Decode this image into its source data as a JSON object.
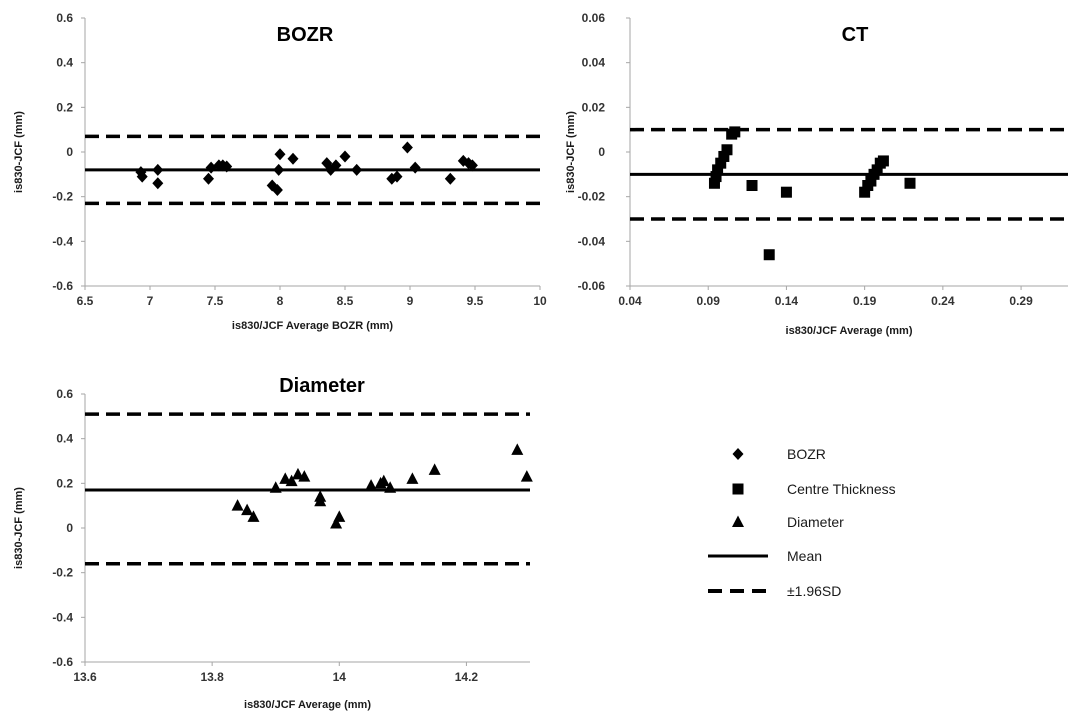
{
  "colors": {
    "marker": "#000000",
    "axis": "#a6a6a6",
    "text": "#333333"
  },
  "legend": {
    "items": [
      {
        "label": "BOZR",
        "marker": "diamond"
      },
      {
        "label": "Centre Thickness",
        "marker": "square"
      },
      {
        "label": "Diameter",
        "marker": "triangle"
      },
      {
        "label": "Mean",
        "marker": "solid-line"
      },
      {
        "label": "±1.96SD",
        "marker": "dashed-line"
      }
    ]
  },
  "chart_data": [
    {
      "type": "scatter",
      "title": "BOZR",
      "xlabel": "is830/JCF Average BOZR (mm)",
      "ylabel": "is830-JCF (mm)",
      "xlim": [
        6.5,
        10
      ],
      "ylim": [
        -0.6,
        0.6
      ],
      "xticks": [
        6.5,
        7,
        7.5,
        8,
        8.5,
        9,
        9.5,
        10
      ],
      "yticks": [
        -0.6,
        -0.4,
        -0.2,
        0,
        0.2,
        0.4,
        0.6
      ],
      "xtick_labels": [
        "6.5",
        "7",
        "7.5",
        "8",
        "8.5",
        "9",
        "9.5",
        "10"
      ],
      "ytick_labels": [
        "-0.6",
        "-0.4",
        "-0.2",
        "0",
        "0.2",
        "0.4",
        "0.6"
      ],
      "marker": "diamond",
      "mean": -0.08,
      "upper_limit": 0.07,
      "lower_limit": -0.23,
      "points": [
        [
          6.93,
          -0.09
        ],
        [
          6.94,
          -0.11
        ],
        [
          7.06,
          -0.08
        ],
        [
          7.06,
          -0.14
        ],
        [
          7.45,
          -0.12
        ],
        [
          7.47,
          -0.07
        ],
        [
          7.53,
          -0.06
        ],
        [
          7.56,
          -0.06
        ],
        [
          7.59,
          -0.065
        ],
        [
          7.94,
          -0.15
        ],
        [
          7.98,
          -0.17
        ],
        [
          7.99,
          -0.08
        ],
        [
          8.0,
          -0.01
        ],
        [
          8.1,
          -0.03
        ],
        [
          8.36,
          -0.05
        ],
        [
          8.39,
          -0.08
        ],
        [
          8.43,
          -0.06
        ],
        [
          8.5,
          -0.02
        ],
        [
          8.59,
          -0.08
        ],
        [
          8.86,
          -0.12
        ],
        [
          8.9,
          -0.11
        ],
        [
          8.98,
          0.02
        ],
        [
          9.04,
          -0.07
        ],
        [
          9.31,
          -0.12
        ],
        [
          9.41,
          -0.04
        ],
        [
          9.45,
          -0.05
        ],
        [
          9.48,
          -0.06
        ]
      ]
    },
    {
      "type": "scatter",
      "title": "CT",
      "xlabel": "is830/JCF Average (mm)",
      "ylabel": "is830-JCF (mm)",
      "xlim": [
        0.04,
        0.32
      ],
      "ylim": [
        -0.06,
        0.06
      ],
      "xticks": [
        0.04,
        0.09,
        0.14,
        0.19,
        0.24,
        0.29
      ],
      "yticks": [
        -0.06,
        -0.04,
        -0.02,
        0,
        0.02,
        0.04,
        0.06
      ],
      "xtick_labels": [
        "0.04",
        "0.09",
        "0.14",
        "0.19",
        "0.24",
        "0.29"
      ],
      "ytick_labels": [
        "-0.06",
        "-0.04",
        "-0.02",
        "0",
        "0.02",
        "0.04",
        "0.06"
      ],
      "marker": "square",
      "mean": -0.01,
      "upper_limit": 0.01,
      "lower_limit": -0.03,
      "points": [
        [
          0.094,
          -0.014
        ],
        [
          0.095,
          -0.011
        ],
        [
          0.096,
          -0.008
        ],
        [
          0.098,
          -0.005
        ],
        [
          0.1,
          -0.002
        ],
        [
          0.102,
          0.001
        ],
        [
          0.105,
          0.008
        ],
        [
          0.107,
          0.009
        ],
        [
          0.118,
          -0.015
        ],
        [
          0.129,
          -0.046
        ],
        [
          0.14,
          -0.018
        ],
        [
          0.19,
          -0.018
        ],
        [
          0.192,
          -0.015
        ],
        [
          0.194,
          -0.013
        ],
        [
          0.196,
          -0.01
        ],
        [
          0.198,
          -0.008
        ],
        [
          0.2,
          -0.005
        ],
        [
          0.202,
          -0.004
        ],
        [
          0.219,
          -0.014
        ]
      ]
    },
    {
      "type": "scatter",
      "title": "Diameter",
      "xlabel": "is830/JCF Average (mm)",
      "ylabel": "is830-JCF (mm)",
      "xlim": [
        13.6,
        14.3
      ],
      "ylim": [
        -0.6,
        0.6
      ],
      "xticks": [
        13.6,
        13.8,
        14,
        14.2
      ],
      "yticks": [
        -0.6,
        -0.4,
        -0.2,
        0,
        0.2,
        0.4,
        0.6
      ],
      "xtick_labels": [
        "13.6",
        "13.8",
        "14",
        "14.2"
      ],
      "ytick_labels": [
        "-0.6",
        "-0.4",
        "-0.2",
        "0",
        "0.2",
        "0.4",
        "0.6"
      ],
      "marker": "triangle",
      "mean": 0.17,
      "upper_limit": 0.51,
      "lower_limit": -0.16,
      "points": [
        [
          13.84,
          0.1
        ],
        [
          13.855,
          0.08
        ],
        [
          13.865,
          0.05
        ],
        [
          13.9,
          0.18
        ],
        [
          13.915,
          0.22
        ],
        [
          13.925,
          0.21
        ],
        [
          13.935,
          0.24
        ],
        [
          13.945,
          0.23
        ],
        [
          13.97,
          0.12
        ],
        [
          13.97,
          0.14
        ],
        [
          13.995,
          0.02
        ],
        [
          14.0,
          0.05
        ],
        [
          14.05,
          0.19
        ],
        [
          14.065,
          0.2
        ],
        [
          14.07,
          0.21
        ],
        [
          14.08,
          0.18
        ],
        [
          14.115,
          0.22
        ],
        [
          14.15,
          0.26
        ],
        [
          14.28,
          0.35
        ],
        [
          14.295,
          0.23
        ]
      ]
    }
  ]
}
